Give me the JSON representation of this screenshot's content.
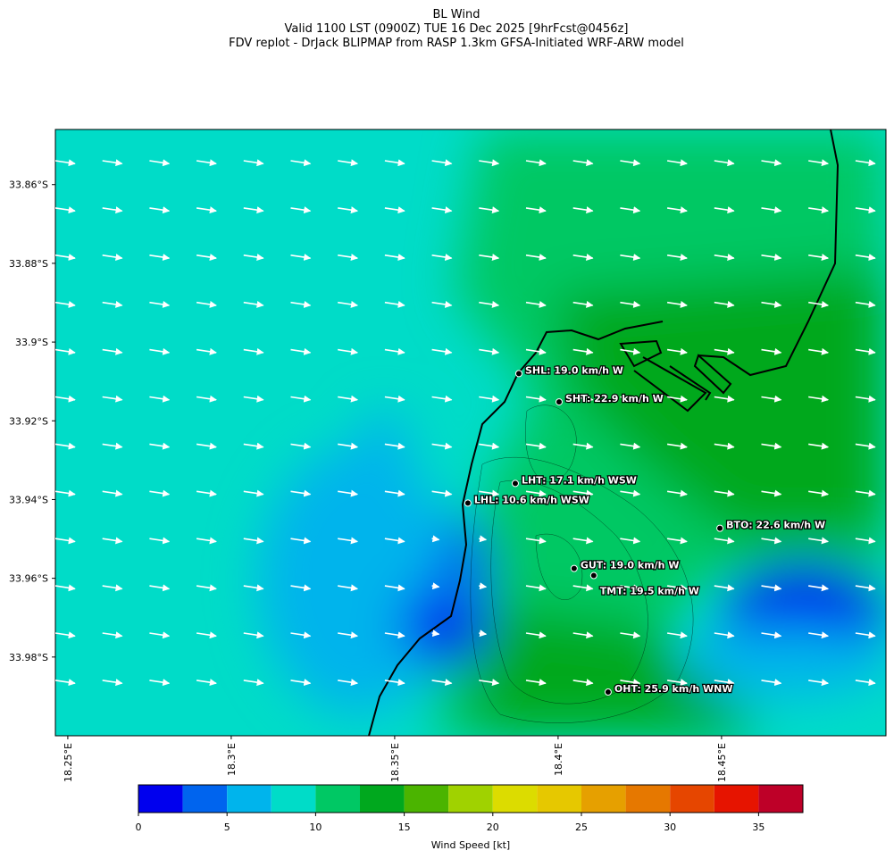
{
  "chart_data": {
    "type": "map",
    "title": "BL Wind",
    "subtitle": "Valid 1100 LST (0900Z) TUE 16 Dec 2025 [9hrFcst@0456z]",
    "subtitle2": "FDV replot - DrJack BLIPMAP from RASP 1.3km GFSA-Initiated WRF-ARW model",
    "xlim": [
      18.2462,
      18.5003
    ],
    "ylim": [
      -34.0,
      -33.846
    ],
    "xticks": [
      {
        "value": 18.25,
        "label": "18.25°E"
      },
      {
        "value": 18.3,
        "label": "18.3°E"
      },
      {
        "value": 18.35,
        "label": "18.35°E"
      },
      {
        "value": 18.4,
        "label": "18.4°E"
      },
      {
        "value": 18.45,
        "label": "18.45°E"
      }
    ],
    "yticks": [
      {
        "value": -33.86,
        "label": "33.86°S"
      },
      {
        "value": -33.88,
        "label": "33.88°S"
      },
      {
        "value": -33.9,
        "label": "33.9°S"
      },
      {
        "value": -33.92,
        "label": "33.92°S"
      },
      {
        "value": -33.94,
        "label": "33.94°S"
      },
      {
        "value": -33.96,
        "label": "33.96°S"
      },
      {
        "value": -33.98,
        "label": "33.98°S"
      }
    ],
    "stations": [
      {
        "label": "SHL: 19.0 km/h W",
        "lon": 18.388,
        "lat": -33.908
      },
      {
        "label": "SHT: 22.9 km/h W",
        "lon": 18.4003,
        "lat": -33.9152
      },
      {
        "label": "LHT: 17.1 km/h WSW",
        "lon": 18.3869,
        "lat": -33.9359
      },
      {
        "label": "LHL: 10.6 km/h WSW",
        "lon": 18.3724,
        "lat": -33.9409
      },
      {
        "label": "BTO: 22.6 km/h W",
        "lon": 18.4495,
        "lat": -33.9473
      },
      {
        "label": "GUT: 19.0 km/h W",
        "lon": 18.4049,
        "lat": -33.9575
      },
      {
        "label": "TMT: 19.5 km/h W",
        "lon": 18.4109,
        "lat": -33.9593
      },
      {
        "label": "OHT: 25.9 km/h WNW",
        "lon": 18.4153,
        "lat": -33.9889
      }
    ],
    "colorbar": {
      "label": "Wind Speed [kt]",
      "lim": [
        0,
        37.5
      ],
      "ticks": [
        0,
        5,
        10,
        15,
        20,
        25,
        30,
        35
      ],
      "bounds": [
        0,
        2.5,
        5,
        7.5,
        10,
        12.5,
        15,
        17.5,
        20,
        22.5,
        25,
        27.5,
        30,
        32.5,
        35,
        37.5
      ],
      "colors": [
        "#0000ee",
        "#0064ee",
        "#00b4ec",
        "#00dcc8",
        "#00c864",
        "#00a81e",
        "#4bb400",
        "#a0d200",
        "#dcdc00",
        "#e6c800",
        "#e6a000",
        "#e67800",
        "#e64600",
        "#e61400",
        "#be0028"
      ]
    }
  }
}
